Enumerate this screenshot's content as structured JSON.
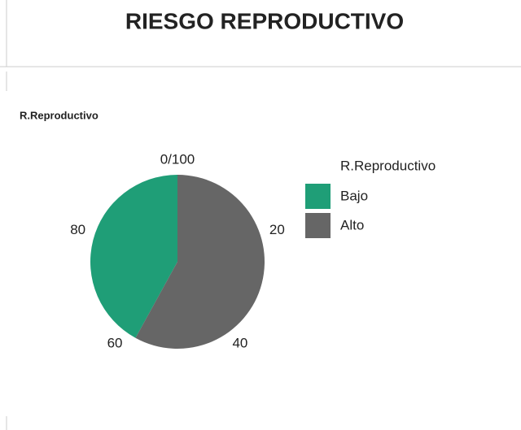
{
  "header": {
    "title": "RIESGO REPRODUCTIVO"
  },
  "chart_data": {
    "type": "pie",
    "title": "R.Reproductivo",
    "legend_title": "R.Reproductivo",
    "categories": [
      "Bajo",
      "Alto"
    ],
    "values": [
      42,
      58
    ],
    "colors": [
      "#1f9e77",
      "#666666"
    ],
    "lim": [
      0,
      100
    ],
    "ticks": [
      {
        "value": 0,
        "label": "0/100"
      },
      20,
      40,
      60,
      80
    ],
    "legend": "right"
  }
}
